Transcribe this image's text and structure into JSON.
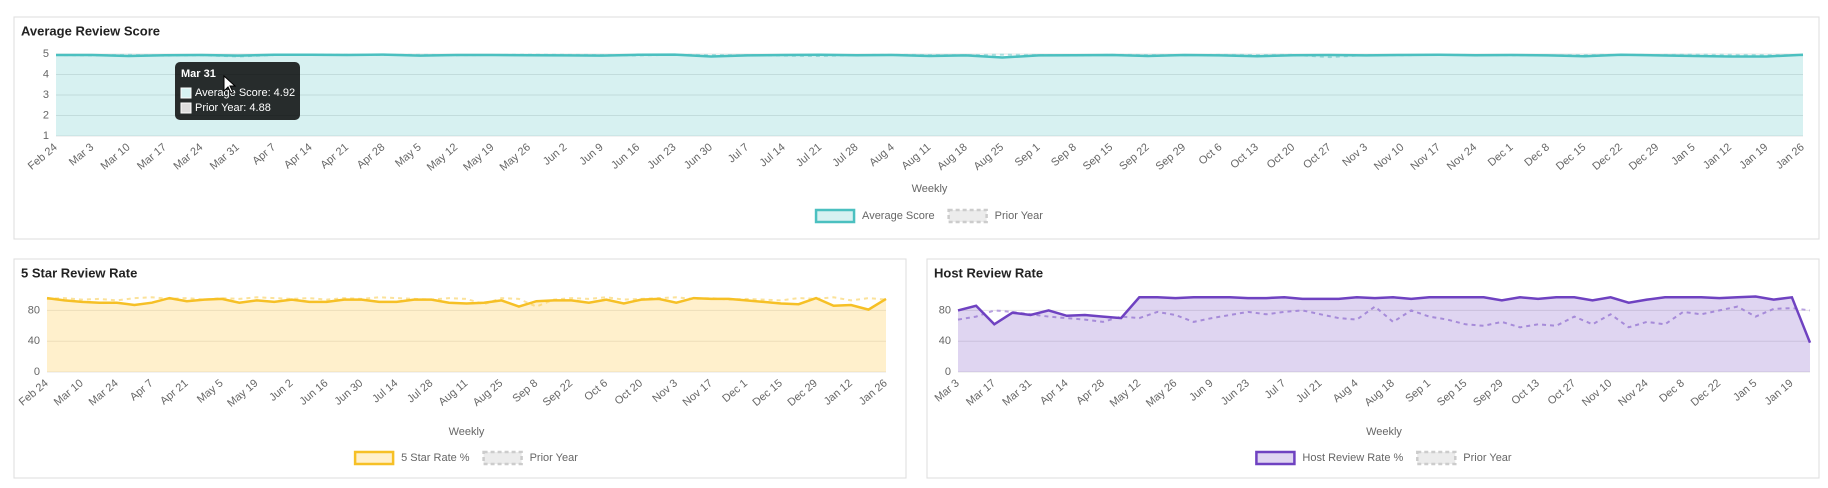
{
  "chart_data": [
    {
      "type": "line",
      "title": "Average Review Score",
      "x_label": "Weekly",
      "categories": [
        "Feb 24",
        "Mar 3",
        "Mar 10",
        "Mar 17",
        "Mar 24",
        "Mar 31",
        "Apr 7",
        "Apr 14",
        "Apr 21",
        "Apr 28",
        "May 5",
        "May 12",
        "May 19",
        "May 26",
        "Jun 2",
        "Jun 9",
        "Jun 16",
        "Jun 23",
        "Jun 30",
        "Jul 7",
        "Jul 14",
        "Jul 21",
        "Jul 28",
        "Aug 4",
        "Aug 11",
        "Aug 18",
        "Aug 25",
        "Sep 1",
        "Sep 8",
        "Sep 15",
        "Sep 22",
        "Sep 29",
        "Oct 6",
        "Oct 13",
        "Oct 20",
        "Oct 27",
        "Nov 3",
        "Nov 10",
        "Nov 17",
        "Nov 24",
        "Dec 1",
        "Dec 8",
        "Dec 15",
        "Dec 22",
        "Dec 29",
        "Jan 5",
        "Jan 12",
        "Jan 19",
        "Jan 26"
      ],
      "series": [
        {
          "name": "Average Score",
          "color": "#4bc0c0",
          "fill_color": "rgba(75,192,192,0.22)",
          "line_style": "solid",
          "values": [
            4.95,
            4.95,
            4.9,
            4.94,
            4.95,
            4.92,
            4.96,
            4.96,
            4.95,
            4.97,
            4.92,
            4.95,
            4.95,
            4.94,
            4.93,
            4.92,
            4.96,
            4.97,
            4.88,
            4.93,
            4.95,
            4.96,
            4.94,
            4.95,
            4.9,
            4.93,
            4.83,
            4.93,
            4.94,
            4.95,
            4.9,
            4.95,
            4.93,
            4.89,
            4.94,
            4.95,
            4.93,
            4.95,
            4.96,
            4.94,
            4.95,
            4.93,
            4.89,
            4.96,
            4.93,
            4.9,
            4.88,
            4.88,
            4.96
          ]
        },
        {
          "name": "Prior Year",
          "color": "#a8dede",
          "line_style": "dashed",
          "values": [
            4.95,
            4.93,
            4.96,
            4.92,
            4.94,
            4.88,
            4.95,
            4.97,
            4.96,
            4.95,
            4.96,
            4.94,
            4.95,
            4.97,
            4.96,
            4.95,
            4.93,
            4.96,
            4.95,
            4.94,
            4.92,
            4.9,
            4.95,
            4.96,
            4.95,
            4.94,
            4.97,
            4.95,
            4.93,
            4.96,
            4.95,
            4.94,
            4.96,
            4.95,
            4.96,
            4.85,
            4.95,
            4.94,
            4.96,
            4.95,
            4.94,
            4.93,
            4.95,
            4.96,
            4.95,
            4.97,
            4.96,
            4.95,
            4.94
          ]
        }
      ],
      "ylim": [
        1,
        5
      ],
      "yticks": [
        1,
        2,
        3,
        4,
        5
      ],
      "grid": true,
      "tooltip": {
        "title": "Mar 31",
        "items": [
          "Average Score: 4.92",
          "Prior Year: 4.88"
        ]
      }
    },
    {
      "type": "line",
      "title": "5 Star Review Rate",
      "x_label": "Weekly",
      "categories": [
        "Feb 24",
        null,
        "Mar 10",
        null,
        "Mar 24",
        null,
        "Apr 7",
        null,
        "Apr 21",
        null,
        "May 5",
        null,
        "May 19",
        null,
        "Jun 2",
        null,
        "Jun 16",
        null,
        "Jun 30",
        null,
        "Jul 14",
        null,
        "Jul 28",
        null,
        "Aug 11",
        null,
        "Aug 25",
        null,
        "Sep 8",
        null,
        "Sep 22",
        null,
        "Oct 6",
        null,
        "Oct 20",
        null,
        "Nov 3",
        null,
        "Nov 17",
        null,
        "Dec 1",
        null,
        "Dec 15",
        null,
        "Dec 29",
        null,
        "Jan 12",
        null,
        "Jan 26"
      ],
      "series": [
        {
          "name": "5 Star Rate %",
          "color": "#f6c026",
          "fill_color": "rgba(255,205,86,0.3)",
          "line_style": "solid",
          "values": [
            96,
            93,
            91,
            90,
            90,
            87,
            90,
            96,
            92,
            94,
            95,
            90,
            93,
            91,
            94,
            91,
            91,
            94,
            94,
            91,
            91,
            94,
            94,
            90,
            89,
            90,
            93,
            85,
            92,
            93,
            93,
            90,
            94,
            89,
            94,
            95,
            90,
            96,
            95,
            95,
            93,
            91,
            89,
            88,
            96,
            86,
            87,
            81,
            95
          ]
        },
        {
          "name": "Prior Year",
          "color": "#fbe29a",
          "line_style": "dashed",
          "values": [
            95,
            96,
            94,
            95,
            93,
            96,
            97,
            95,
            96,
            94,
            96,
            95,
            97,
            96,
            95,
            96,
            94,
            96,
            95,
            97,
            96,
            95,
            94,
            96,
            95,
            88,
            96,
            95,
            85,
            94,
            96,
            95,
            97,
            94,
            95,
            96,
            97,
            95,
            96,
            94,
            95,
            94,
            93,
            96,
            95,
            97,
            93,
            96,
            94
          ]
        }
      ],
      "ylim": [
        0,
        100
      ],
      "yticks": [
        0,
        40,
        80
      ],
      "grid": true
    },
    {
      "type": "line",
      "title": "Host Review Rate",
      "x_label": "Weekly",
      "categories": [
        "Mar 3",
        null,
        "Mar 17",
        null,
        "Mar 31",
        null,
        "Apr 14",
        null,
        "Apr 28",
        null,
        "May 12",
        null,
        "May 26",
        null,
        "Jun 9",
        null,
        "Jun 23",
        null,
        "Jul 7",
        null,
        "Jul 21",
        null,
        "Aug 4",
        null,
        "Aug 18",
        null,
        "Sep 1",
        null,
        "Sep 15",
        null,
        "Sep 29",
        null,
        "Oct 13",
        null,
        "Oct 27",
        null,
        "Nov 10",
        null,
        "Nov 24",
        null,
        "Dec 8",
        null,
        "Dec 22",
        null,
        "Jan 5",
        null,
        "Jan 19",
        null
      ],
      "series": [
        {
          "name": "Host Review Rate %",
          "color": "#6f42c1",
          "fill_color": "rgba(111,66,193,0.22)",
          "line_style": "solid",
          "values": [
            80,
            86,
            62,
            77,
            74,
            80,
            73,
            74,
            72,
            70,
            97,
            97,
            96,
            97,
            97,
            97,
            96,
            96,
            97,
            95,
            95,
            95,
            97,
            96,
            97,
            95,
            97,
            97,
            97,
            97,
            93,
            97,
            95,
            97,
            97,
            93,
            97,
            90,
            94,
            97,
            97,
            97,
            96,
            97,
            98,
            94,
            97,
            38
          ]
        },
        {
          "name": "Prior Year",
          "color": "#b7a0e0",
          "line_style": "dashed",
          "values": [
            68,
            72,
            80,
            78,
            75,
            72,
            70,
            68,
            65,
            72,
            70,
            78,
            74,
            65,
            70,
            74,
            78,
            75,
            78,
            80,
            75,
            70,
            68,
            85,
            65,
            80,
            72,
            68,
            62,
            60,
            65,
            58,
            62,
            60,
            72,
            62,
            75,
            58,
            65,
            62,
            78,
            75,
            80,
            85,
            72,
            82,
            83,
            80
          ]
        }
      ],
      "ylim": [
        0,
        100
      ],
      "yticks": [
        0,
        40,
        80
      ],
      "grid": true
    }
  ]
}
